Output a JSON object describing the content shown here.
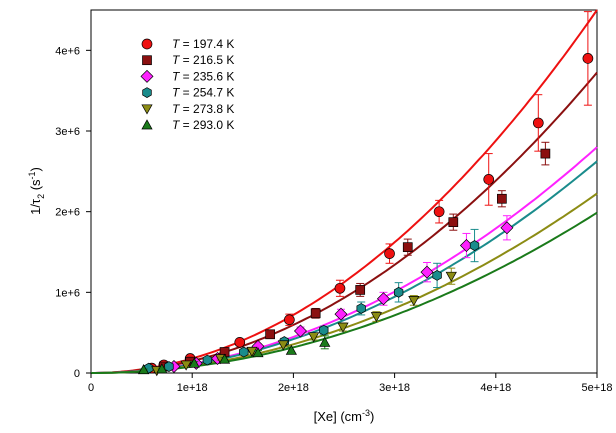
{
  "chart_data": {
    "type": "scatter",
    "xlabel_main": "[Xe] (cm",
    "xlabel_sup": "-3",
    "xlabel_end": ")",
    "ylabel_main": "1/τ",
    "ylabel_sub": "2",
    "ylabel_mid": " (s",
    "ylabel_sup": "-1",
    "ylabel_end": ")",
    "xlim": [
      0,
      5e+18
    ],
    "ylim": [
      0,
      4500000.0
    ],
    "x_ticks": [
      0,
      1e+18,
      2e+18,
      3e+18,
      4e+18,
      5e+18
    ],
    "x_tick_labels": [
      "0",
      "1e+18",
      "2e+18",
      "3e+18",
      "4e+18",
      "5e+18"
    ],
    "y_ticks": [
      0,
      1000000.0,
      2000000.0,
      3000000.0,
      4000000.0
    ],
    "y_tick_labels": [
      "0",
      "1e+6",
      "2e+6",
      "3e+6",
      "4e+6"
    ],
    "grid": false,
    "legend_position": "top-left",
    "series": [
      {
        "name": "T = 197.4 K",
        "name_var": "T",
        "name_rest": " = 197.4 K",
        "marker": "circle",
        "color": "#ee1111",
        "x": [
          6e+17,
          7.2e+17,
          9.8e+17,
          1.47e+18,
          1.96e+18,
          2.46e+18,
          2.95e+18,
          3.44e+18,
          3.93e+18,
          4.42e+18,
          4.91e+18
        ],
        "y": [
          60000.0,
          100000.0,
          180000.0,
          380000.0,
          660000.0,
          1050000.0,
          1480000.0,
          2000000.0,
          2400000.0,
          3100000.0,
          3900000.0
        ],
        "err": [
          20000.0,
          20000.0,
          30000.0,
          40000.0,
          70000.0,
          100000.0,
          120000.0,
          140000.0,
          320000.0,
          350000.0,
          580000.0
        ],
        "fit": 1.8e-31
      },
      {
        "name": "T = 216.5 K",
        "name_var": "T",
        "name_rest": " = 216.5 K",
        "marker": "square",
        "color": "#8b1010",
        "x": [
          7.2e+17,
          9.8e+17,
          1.32e+18,
          1.77e+18,
          2.22e+18,
          2.66e+18,
          3.13e+18,
          3.58e+18,
          4.06e+18,
          4.49e+18
        ],
        "y": [
          80000.0,
          140000.0,
          260000.0,
          480000.0,
          740000.0,
          1030000.0,
          1560000.0,
          1870000.0,
          2160000.0,
          2720000.0
        ],
        "err": [
          20000.0,
          20000.0,
          30000.0,
          40000.0,
          60000.0,
          80000.0,
          100000.0,
          100000.0,
          100000.0,
          140000.0
        ],
        "fit": 1.49e-31
      },
      {
        "name": "T = 235.6 K",
        "name_var": "T",
        "name_rest": " = 235.6 K",
        "marker": "diamond",
        "color": "#ff22ff",
        "x": [
          8.2e+17,
          1.04e+18,
          1.25e+18,
          1.65e+18,
          2.07e+18,
          2.47e+18,
          2.89e+18,
          3.32e+18,
          3.71e+18,
          4.11e+18
        ],
        "y": [
          80000.0,
          120000.0,
          180000.0,
          330000.0,
          520000.0,
          730000.0,
          920000.0,
          1250000.0,
          1580000.0,
          1800000.0
        ],
        "err": [
          20000.0,
          20000.0,
          20000.0,
          30000.0,
          50000.0,
          60000.0,
          80000.0,
          120000.0,
          150000.0,
          150000.0
        ],
        "fit": 1.12e-31
      },
      {
        "name": "T = 254.7 K",
        "name_var": "T",
        "name_rest": " = 254.7 K",
        "marker": "hexagon",
        "color": "#1a8c8c",
        "x": [
          5.7e+17,
          7.7e+17,
          1.15e+18,
          1.51e+18,
          1.91e+18,
          2.3e+18,
          2.67e+18,
          3.04e+18,
          3.42e+18,
          3.79e+18
        ],
        "y": [
          60000.0,
          80000.0,
          160000.0,
          260000.0,
          390000.0,
          530000.0,
          800000.0,
          1000000.0,
          1210000.0,
          1580000.0
        ],
        "err": [
          20000.0,
          20000.0,
          20000.0,
          30000.0,
          40000.0,
          50000.0,
          80000.0,
          120000.0,
          150000.0,
          200000.0
        ],
        "fit": 1.05e-31
      },
      {
        "name": "T = 273.8 K",
        "name_var": "T",
        "name_rest": " = 273.8 K",
        "marker": "triangle-down",
        "color": "#8c8c14",
        "x": [
          6.5e+17,
          9.4e+17,
          1.28e+18,
          1.59e+18,
          1.9e+18,
          2.2e+18,
          2.49e+18,
          2.82e+18,
          3.19e+18,
          3.56e+18
        ],
        "y": [
          30000.0,
          100000.0,
          180000.0,
          270000.0,
          350000.0,
          450000.0,
          570000.0,
          700000.0,
          900000.0,
          1200000.0
        ],
        "err": [
          10000.0,
          20000.0,
          20000.0,
          20000.0,
          30000.0,
          40000.0,
          50000.0,
          60000.0,
          60000.0,
          100000.0
        ],
        "fit": 8.9e-32
      },
      {
        "name": "T = 293.0 K",
        "name_var": "T",
        "name_rest": " = 293.0 K",
        "marker": "triangle-up",
        "color": "#1a7a1a",
        "x": [
          5.2e+17,
          7e+17,
          1.02e+18,
          1.32e+18,
          1.65e+18,
          1.98e+18,
          2.31e+18
        ],
        "y": [
          40000.0,
          50000.0,
          120000.0,
          170000.0,
          250000.0,
          280000.0,
          380000.0
        ],
        "err": [
          10000.0,
          10000.0,
          20000.0,
          20000.0,
          30000.0,
          40000.0,
          80000.0
        ],
        "fit": 7.95e-32
      }
    ]
  }
}
